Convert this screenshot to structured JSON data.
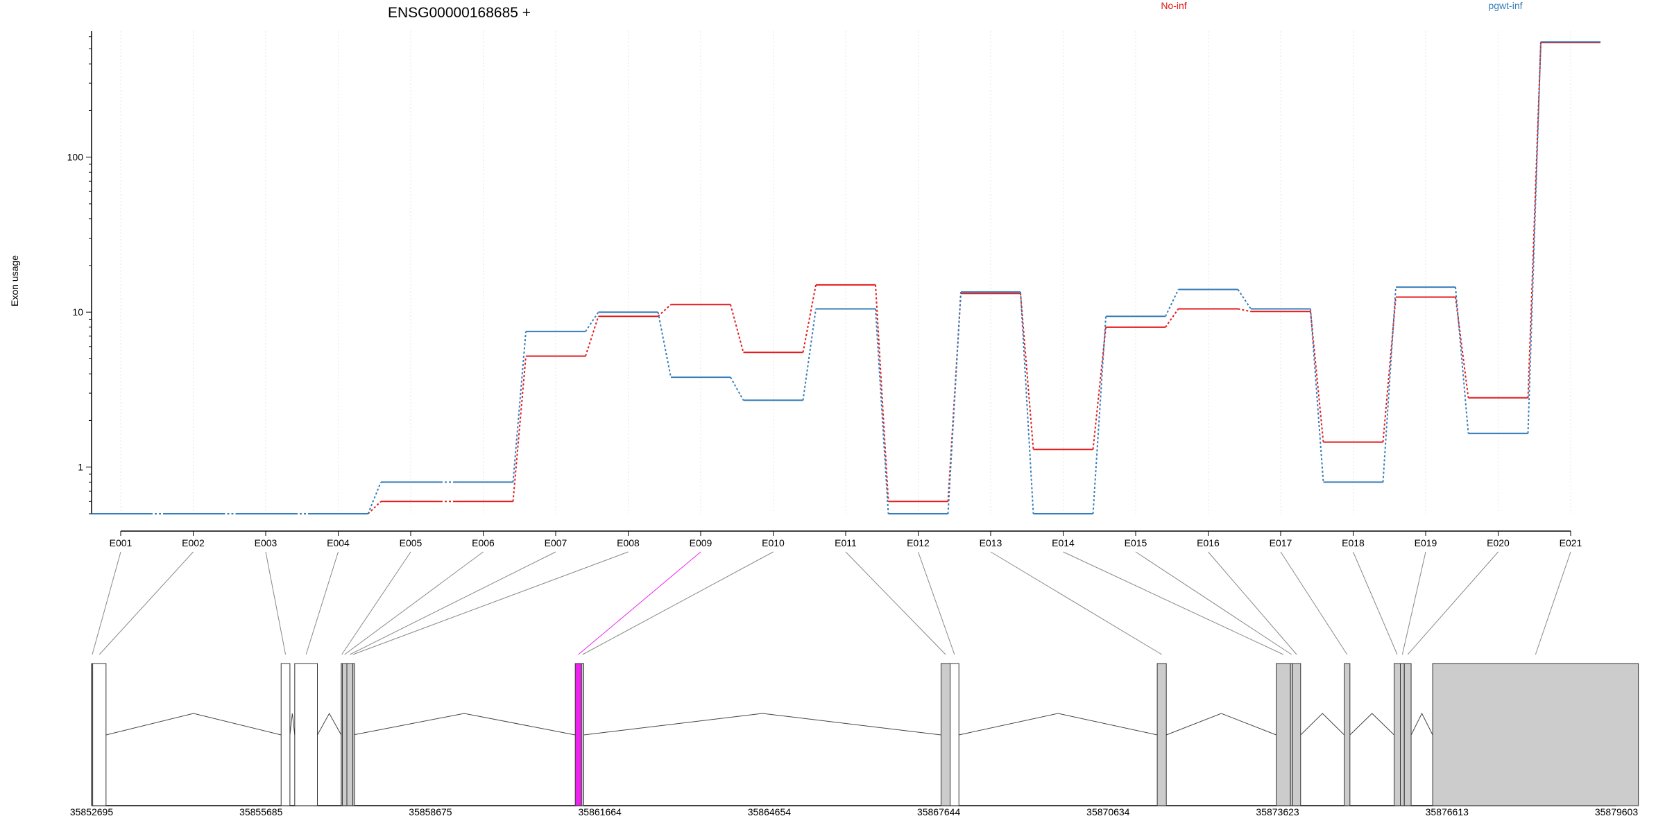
{
  "chart_data": {
    "type": "line",
    "title": "ENSG00000168685 +",
    "ylabel": "Exon usage",
    "yscale": "log",
    "ylim": [
      0.5,
      650
    ],
    "yticks": [
      1,
      10,
      100
    ],
    "ytick_labels": [
      "1",
      "10",
      "100"
    ],
    "grid": "vertical dotted",
    "categories": [
      "E001",
      "E002",
      "E003",
      "E004",
      "E005",
      "E006",
      "E007",
      "E008",
      "E009",
      "E010",
      "E011",
      "E012",
      "E013",
      "E014",
      "E015",
      "E016",
      "E017",
      "E018",
      "E019",
      "E020",
      "E021"
    ],
    "legend": {
      "placement": "top",
      "entries": [
        "No-inf",
        "pgwt-inf"
      ]
    },
    "series": [
      {
        "name": "No-inf",
        "color": "#e41a1c",
        "values": [
          0.5,
          0.5,
          0.5,
          0.5,
          0.6,
          0.6,
          5.2,
          9.4,
          11.2,
          5.5,
          15,
          0.6,
          13.2,
          1.3,
          8,
          10.5,
          10.1,
          1.45,
          12.5,
          2.8,
          550
        ]
      },
      {
        "name": "pgwt-inf",
        "color": "#377eb8",
        "values": [
          0.5,
          0.5,
          0.5,
          0.5,
          0.8,
          0.8,
          7.5,
          10,
          3.8,
          2.7,
          10.5,
          0.5,
          13.5,
          0.5,
          9.4,
          14,
          10.5,
          0.8,
          14.5,
          1.65,
          555
        ]
      }
    ],
    "gene_model": {
      "coord_ticks": [
        "35852695",
        "35855685",
        "35858675",
        "35861664",
        "35864654",
        "35867644",
        "35870634",
        "35873623",
        "35876613",
        "35879603"
      ],
      "range": [
        35852695,
        35879603
      ],
      "highlight_color": "#ee22ee",
      "exon_fill": "#cccccc",
      "exons": [
        {
          "id": "E001",
          "start": 35852699,
          "end": 35852715,
          "fill": "none"
        },
        {
          "id": "E002",
          "start": 35852715,
          "end": 35852950,
          "fill": "none"
        },
        {
          "id": "E003",
          "start": 35856040,
          "end": 35856195,
          "fill": "none"
        },
        {
          "id": "E004",
          "start": 35856280,
          "end": 35856680,
          "fill": "none"
        },
        {
          "id": "E005",
          "start": 35857100,
          "end": 35857120,
          "fill": "grey"
        },
        {
          "id": "E006",
          "start": 35857120,
          "end": 35857200,
          "fill": "grey"
        },
        {
          "id": "E007",
          "start": 35857200,
          "end": 35857305,
          "fill": "grey"
        },
        {
          "id": "E008",
          "start": 35857305,
          "end": 35857310,
          "fill": "grey"
        },
        {
          "id": "E009",
          "start": 35861230,
          "end": 35861340,
          "fill": "highlight"
        },
        {
          "id": "E010",
          "start": 35861340,
          "end": 35861380,
          "fill": "grey"
        },
        {
          "id": "E011",
          "start": 35867685,
          "end": 35867845,
          "fill": "grey"
        },
        {
          "id": "E012",
          "start": 35867845,
          "end": 35868000,
          "fill": "none"
        },
        {
          "id": "E013",
          "start": 35871500,
          "end": 35871660,
          "fill": "grey"
        },
        {
          "id": "E014",
          "start": 35873600,
          "end": 35873850,
          "fill": "grey"
        },
        {
          "id": "E015",
          "start": 35873850,
          "end": 35873890,
          "fill": "grey"
        },
        {
          "id": "E016",
          "start": 35873890,
          "end": 35874030,
          "fill": "grey"
        },
        {
          "id": "E017",
          "start": 35874800,
          "end": 35874900,
          "fill": "grey"
        },
        {
          "id": "E018",
          "start": 35875680,
          "end": 35875790,
          "fill": "grey"
        },
        {
          "id": "E019",
          "start": 35875790,
          "end": 35875860,
          "fill": "grey"
        },
        {
          "id": "E020",
          "start": 35875860,
          "end": 35875980,
          "fill": "grey"
        },
        {
          "id": "E021",
          "start": 35876360,
          "end": 35879990,
          "fill": "grey"
        }
      ],
      "introns": [
        [
          35852950,
          35856040
        ],
        [
          35856195,
          35856280
        ],
        [
          35856680,
          35857100
        ],
        [
          35857310,
          35861230
        ],
        [
          35861380,
          35867685
        ],
        [
          35868000,
          35871500
        ],
        [
          35871660,
          35873600
        ],
        [
          35874030,
          35874800
        ],
        [
          35874900,
          35875680
        ],
        [
          35875980,
          35876360
        ]
      ]
    }
  }
}
